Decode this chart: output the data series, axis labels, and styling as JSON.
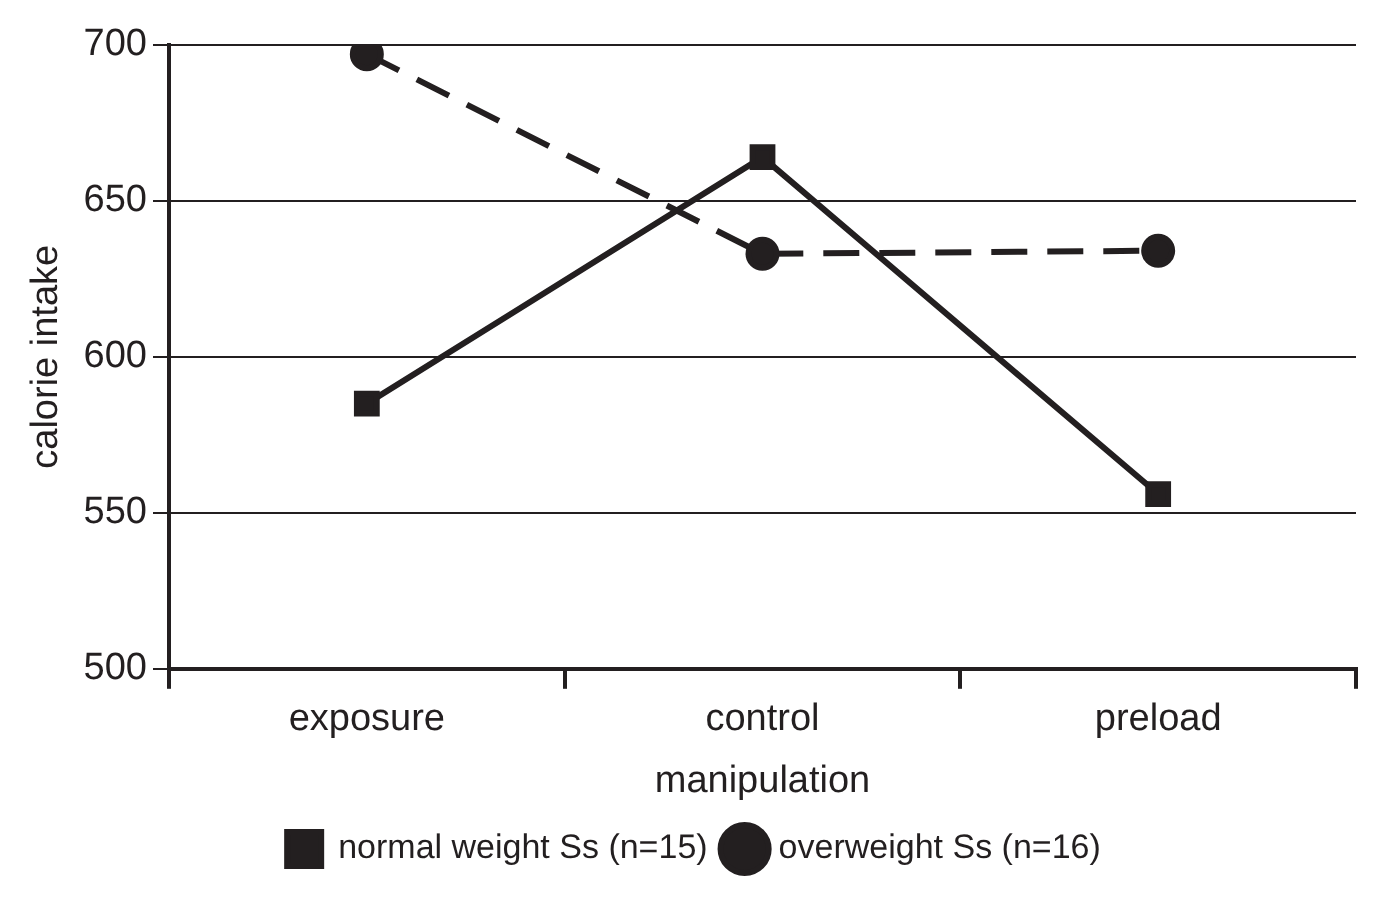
{
  "chart_data": {
    "type": "line",
    "xlabel": "manipulation",
    "ylabel": "calorie intake",
    "categories": [
      "exposure",
      "control",
      "preload"
    ],
    "series": [
      {
        "name": "normal weight Ss (n=15)",
        "color": "#231f20",
        "values": [
          585,
          664,
          556
        ],
        "marker": "square",
        "line_style": "solid"
      },
      {
        "name": "overweight Ss (n=16)",
        "color": "#231f20",
        "values": [
          697,
          633,
          634
        ],
        "marker": "circle",
        "line_style": "dashed"
      }
    ],
    "ylim": [
      500,
      700
    ],
    "yticks": [
      500,
      550,
      600,
      650,
      700
    ],
    "grid": "y",
    "legend": "bottom"
  }
}
